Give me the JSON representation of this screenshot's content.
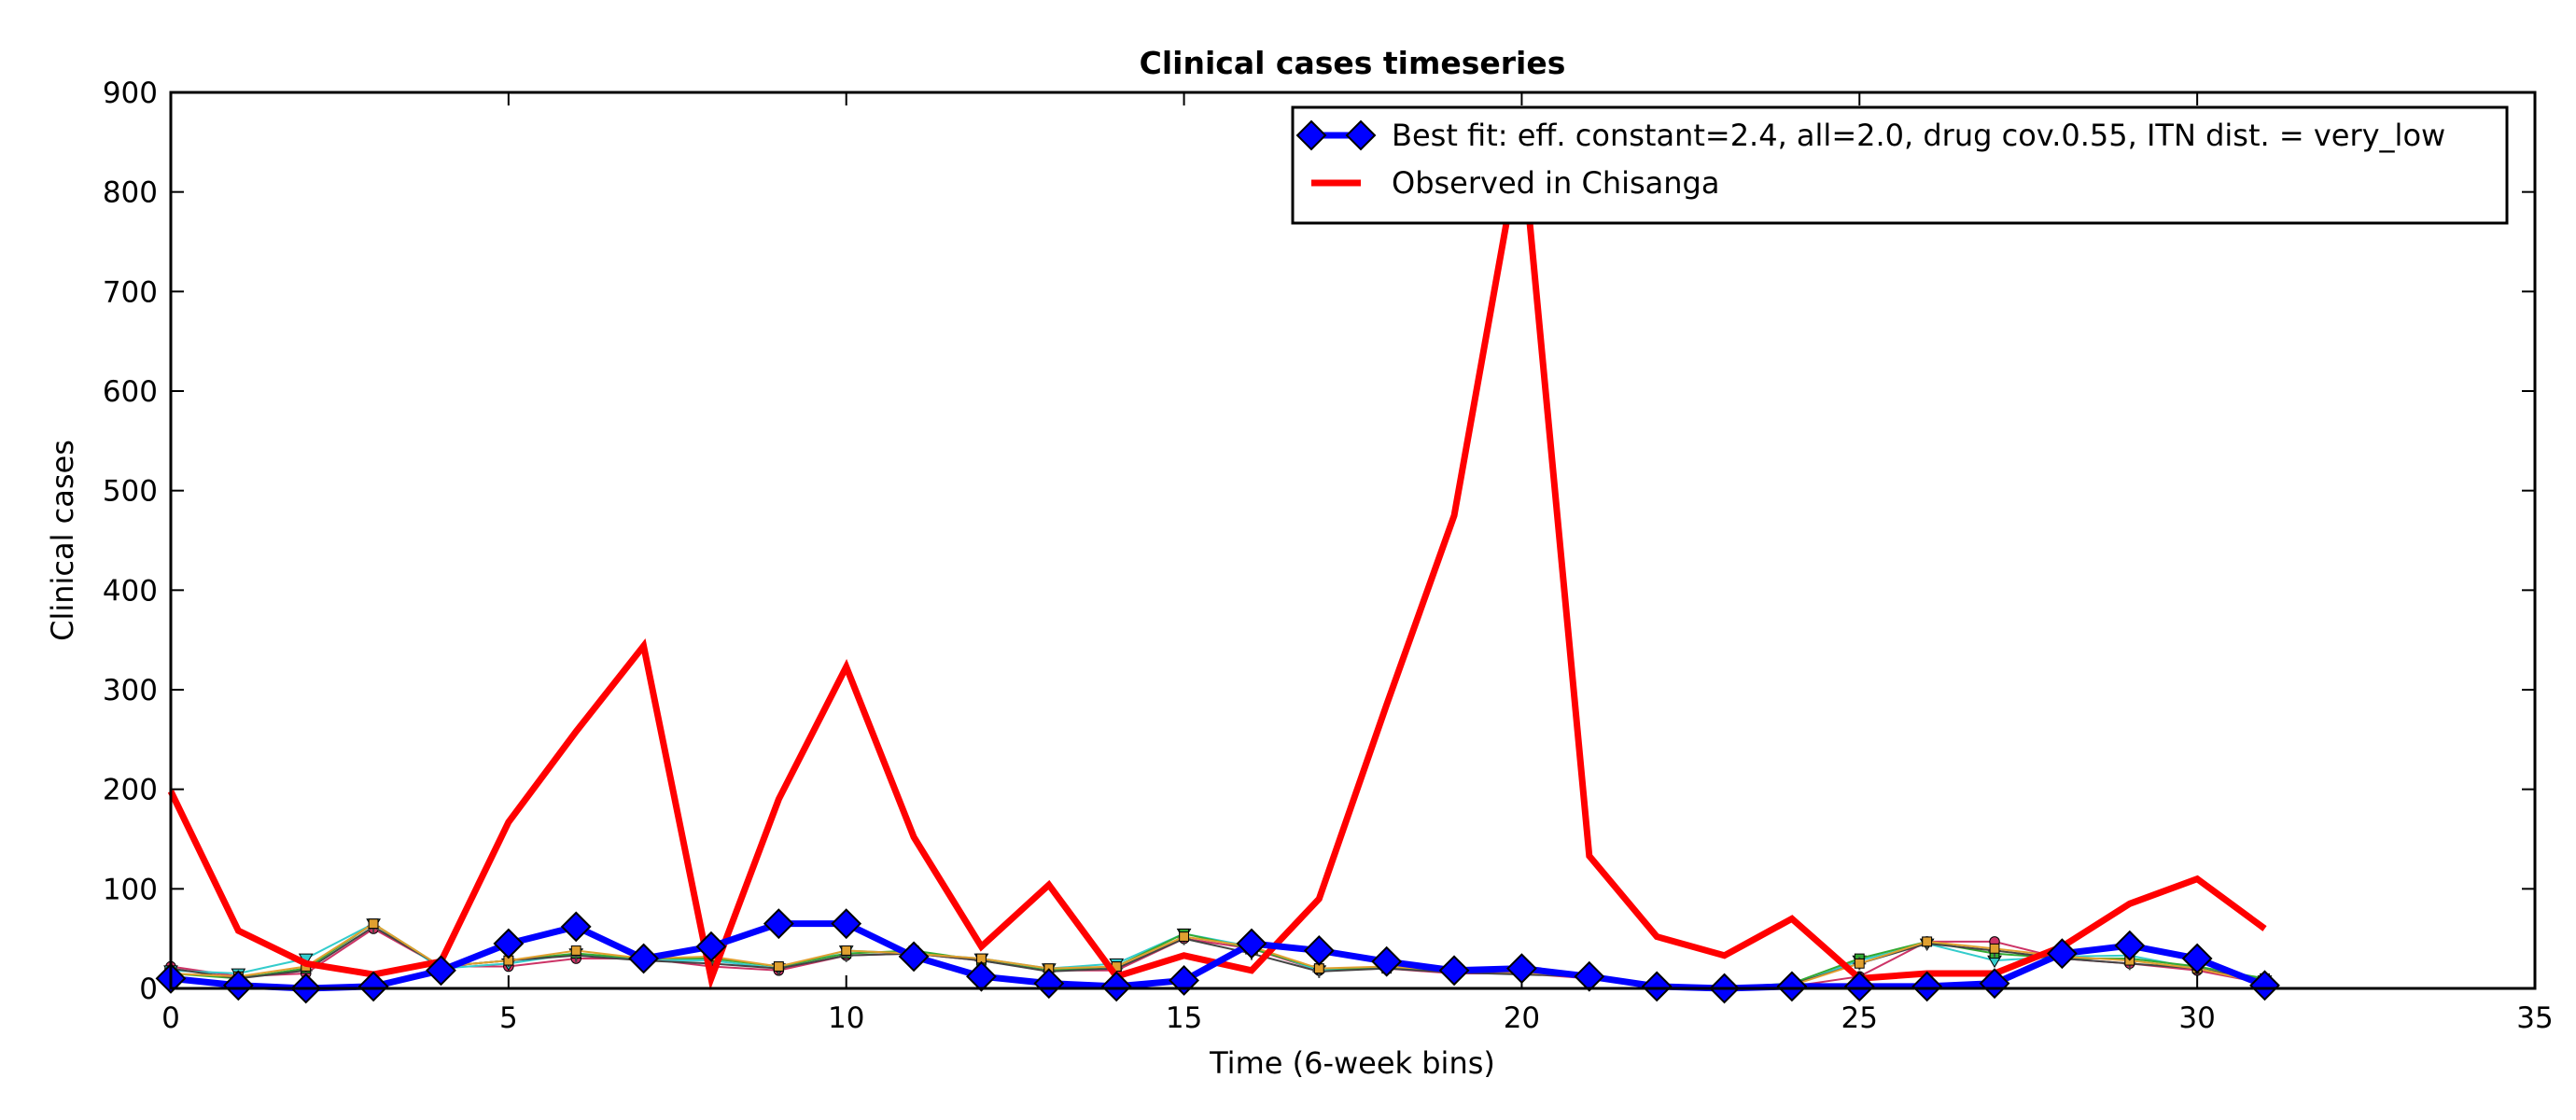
{
  "chart_data": {
    "type": "line",
    "title": "Clinical cases timeseries",
    "xlabel": "Time (6-week bins)",
    "ylabel": "Clinical cases",
    "xlim": [
      0,
      35
    ],
    "ylim": [
      0,
      900
    ],
    "xticks": [
      0,
      5,
      10,
      15,
      20,
      25,
      30,
      35
    ],
    "yticks": [
      0,
      100,
      200,
      300,
      400,
      500,
      600,
      700,
      800,
      900
    ],
    "grid": false,
    "legend_position": "top-right",
    "x": [
      0,
      1,
      2,
      3,
      4,
      5,
      6,
      7,
      8,
      9,
      10,
      11,
      12,
      13,
      14,
      15,
      16,
      17,
      18,
      19,
      20,
      21,
      22,
      23,
      24,
      25,
      26,
      27,
      28,
      29,
      30,
      31
    ],
    "series": [
      {
        "name": "Best fit: eff. constant=2.4, all=2.0, drug cov.0.55, ITN dist. = very_low",
        "role": "best-fit",
        "color": "#0000ff",
        "marker": "diamond",
        "values": [
          10,
          3,
          0,
          2,
          18,
          45,
          62,
          30,
          42,
          65,
          65,
          32,
          12,
          5,
          2,
          8,
          45,
          38,
          27,
          18,
          20,
          12,
          2,
          0,
          2,
          2,
          2,
          5,
          35,
          43,
          30,
          3
        ]
      },
      {
        "name": "Observed in Chisanga",
        "role": "observed",
        "color": "#ff0000",
        "values": [
          198,
          58,
          25,
          14,
          27,
          167,
          258,
          344,
          10,
          190,
          323,
          152,
          42,
          104,
          12,
          33,
          18,
          90,
          285,
          475,
          855,
          133,
          52,
          33,
          70,
          10,
          15,
          15,
          42,
          85,
          110,
          60
        ]
      },
      {
        "role": "simulation",
        "color": "#cc3366",
        "marker": "circle",
        "values": [
          22,
          12,
          15,
          60,
          22,
          22,
          30,
          30,
          22,
          18,
          33,
          35,
          28,
          18,
          18,
          50,
          40,
          18,
          20,
          15,
          15,
          10,
          0,
          0,
          2,
          12,
          47,
          47,
          30,
          25,
          18,
          5
        ]
      },
      {
        "role": "simulation",
        "color": "#33cccc",
        "marker": "triangle",
        "values": [
          18,
          15,
          30,
          65,
          20,
          25,
          35,
          28,
          28,
          20,
          38,
          35,
          30,
          20,
          25,
          55,
          42,
          18,
          22,
          17,
          17,
          12,
          2,
          0,
          3,
          28,
          45,
          28,
          32,
          33,
          20,
          8
        ]
      },
      {
        "role": "simulation",
        "color": "#33aa33",
        "marker": "square",
        "values": [
          15,
          10,
          20,
          65,
          22,
          28,
          35,
          30,
          30,
          22,
          35,
          38,
          28,
          18,
          22,
          55,
          40,
          20,
          20,
          18,
          16,
          14,
          3,
          1,
          5,
          30,
          47,
          35,
          30,
          30,
          22,
          10
        ]
      },
      {
        "role": "simulation",
        "color": "#444444",
        "marker": "plus",
        "values": [
          20,
          10,
          18,
          62,
          22,
          28,
          33,
          28,
          25,
          20,
          33,
          35,
          28,
          17,
          20,
          50,
          35,
          17,
          20,
          16,
          14,
          12,
          2,
          0,
          4,
          25,
          45,
          38,
          30,
          25,
          20,
          8
        ]
      },
      {
        "role": "simulation",
        "color": "#e0a030",
        "marker": "square",
        "values": [
          15,
          12,
          22,
          65,
          22,
          28,
          38,
          30,
          32,
          22,
          38,
          35,
          30,
          20,
          22,
          52,
          42,
          20,
          22,
          18,
          16,
          12,
          2,
          0,
          3,
          25,
          47,
          40,
          32,
          28,
          20,
          5
        ]
      }
    ]
  }
}
